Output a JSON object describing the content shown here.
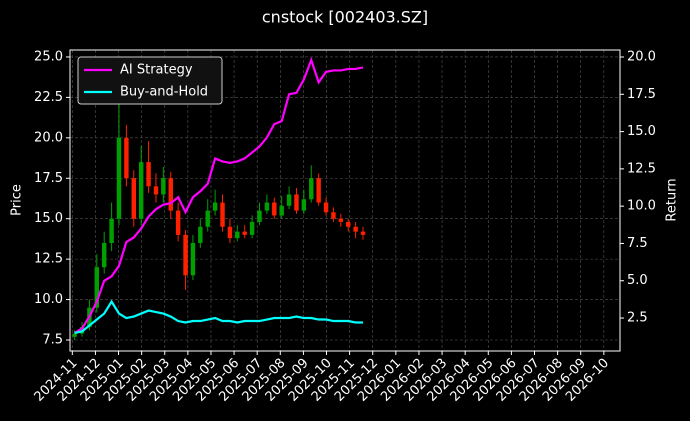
{
  "chart_data": {
    "type": "candlestick",
    "title": "cnstock [002403.SZ]",
    "ylabel": "Price",
    "y2label": "Return",
    "x": [
      0.1,
      0.42,
      0.74,
      1.06,
      1.38,
      1.7,
      2.02,
      2.34,
      2.66,
      2.98,
      3.3,
      3.62,
      3.94,
      4.26,
      4.58,
      4.9,
      5.22,
      5.54,
      5.86,
      6.18,
      6.5,
      6.82,
      7.14,
      7.46,
      7.78,
      8.1,
      8.42,
      8.74,
      9.06,
      9.38,
      9.7,
      10.02,
      10.34,
      10.66,
      10.98,
      11.3,
      11.62,
      11.94,
      12.26,
      12.58
    ],
    "open": [
      7.7,
      7.9,
      8.3,
      9.5,
      12.0,
      13.5,
      15.0,
      20.0,
      17.5,
      15.0,
      18.5,
      17.0,
      16.5,
      17.5,
      15.5,
      14.0,
      11.5,
      13.5,
      14.5,
      15.5,
      16.0,
      14.5,
      13.8,
      14.2,
      14.0,
      14.8,
      15.5,
      16.0,
      15.2,
      15.8,
      16.5,
      15.5,
      16.2,
      17.5,
      16.0,
      15.4,
      15.0,
      14.8,
      14.5,
      14.2
    ],
    "high": [
      8.1,
      8.6,
      10.0,
      12.8,
      14.2,
      16.0,
      22.5,
      20.8,
      18.0,
      19.5,
      19.8,
      17.8,
      18.2,
      17.9,
      16.0,
      14.3,
      14.0,
      15.0,
      16.2,
      16.8,
      16.5,
      15.0,
      14.6,
      14.6,
      15.2,
      16.0,
      16.5,
      16.3,
      16.4,
      17.0,
      16.9,
      16.8,
      18.3,
      17.8,
      16.3,
      15.7,
      15.3,
      15.0,
      14.8,
      14.5
    ],
    "low": [
      7.5,
      7.7,
      8.1,
      9.2,
      11.6,
      13.0,
      14.6,
      17.0,
      14.5,
      14.6,
      16.6,
      16.0,
      16.0,
      15.0,
      13.6,
      10.6,
      11.2,
      13.2,
      14.2,
      15.2,
      14.2,
      13.5,
      13.6,
      13.8,
      13.8,
      14.6,
      15.3,
      15.0,
      15.0,
      15.6,
      15.3,
      15.3,
      16.0,
      15.8,
      15.2,
      14.8,
      14.5,
      14.2,
      13.8,
      13.7
    ],
    "close": [
      7.9,
      8.3,
      9.5,
      12.0,
      13.5,
      15.0,
      20.0,
      17.5,
      15.0,
      18.5,
      17.0,
      16.5,
      17.5,
      15.5,
      14.0,
      11.5,
      13.5,
      14.5,
      15.5,
      16.0,
      14.5,
      13.8,
      14.2,
      14.0,
      14.8,
      15.5,
      16.0,
      15.2,
      15.8,
      16.5,
      15.5,
      16.2,
      17.5,
      16.0,
      15.4,
      15.0,
      14.8,
      14.5,
      14.2,
      14.0
    ],
    "up_color": "#00a000",
    "down_color": "#ff2000",
    "series": [
      {
        "name": "AI Strategy",
        "color": "#ff00ff",
        "axis": "y2",
        "values": [
          1.5,
          1.8,
          2.6,
          3.6,
          5.0,
          5.3,
          6.0,
          7.6,
          7.9,
          8.5,
          9.3,
          9.8,
          10.1,
          10.2,
          10.6,
          9.6,
          10.6,
          11.0,
          11.5,
          13.2,
          13.0,
          12.9,
          13.0,
          13.2,
          13.6,
          14.0,
          14.6,
          15.5,
          15.7,
          17.5,
          17.6,
          18.5,
          19.8,
          18.3,
          19.0,
          19.1,
          19.1,
          19.2,
          19.2,
          19.3
        ]
      },
      {
        "name": "Buy-and-Hold",
        "color": "#00ffff",
        "axis": "y2",
        "values": [
          1.5,
          1.6,
          2.0,
          2.4,
          2.8,
          3.6,
          2.8,
          2.5,
          2.6,
          2.8,
          3.0,
          2.9,
          2.8,
          2.6,
          2.3,
          2.2,
          2.3,
          2.3,
          2.4,
          2.5,
          2.3,
          2.3,
          2.2,
          2.3,
          2.3,
          2.3,
          2.4,
          2.5,
          2.5,
          2.5,
          2.6,
          2.5,
          2.5,
          2.4,
          2.4,
          2.3,
          2.3,
          2.3,
          2.2,
          2.2
        ]
      }
    ],
    "xlim": [
      -0.1,
      23.7
    ],
    "xticks": [
      {
        "value": 0,
        "label": "2024-11"
      },
      {
        "value": 1,
        "label": "2024-12"
      },
      {
        "value": 2,
        "label": "2025-01"
      },
      {
        "value": 3,
        "label": "2025-02"
      },
      {
        "value": 4,
        "label": "2025-03"
      },
      {
        "value": 5,
        "label": "2025-04"
      },
      {
        "value": 6,
        "label": "2025-05"
      },
      {
        "value": 7,
        "label": "2025-06"
      },
      {
        "value": 8,
        "label": "2025-07"
      },
      {
        "value": 9,
        "label": "2025-08"
      },
      {
        "value": 10,
        "label": "2025-09"
      },
      {
        "value": 11,
        "label": "2025-10"
      },
      {
        "value": 12,
        "label": "2025-11"
      },
      {
        "value": 13,
        "label": "2025-12"
      },
      {
        "value": 14,
        "label": "2026-01"
      },
      {
        "value": 15,
        "label": "2026-02"
      },
      {
        "value": 16,
        "label": "2026-03"
      },
      {
        "value": 17,
        "label": "2026-04"
      },
      {
        "value": 18,
        "label": "2026-05"
      },
      {
        "value": 19,
        "label": "2026-06"
      },
      {
        "value": 20,
        "label": "2026-07"
      },
      {
        "value": 21,
        "label": "2026-08"
      },
      {
        "value": 22,
        "label": "2026-09"
      },
      {
        "value": 23,
        "label": "2026-10"
      }
    ],
    "ylim": [
      6.82,
      25.43
    ],
    "yticks": [
      7.5,
      {
        "value": 10,
        "label": "10.0"
      },
      12.5,
      {
        "value": 15,
        "label": "15.0"
      },
      17.5,
      {
        "value": 20,
        "label": "20.0"
      },
      22.5,
      {
        "value": 25,
        "label": "25.0"
      }
    ],
    "y2lim": [
      0.29,
      20.47
    ],
    "y2ticks": [
      2.5,
      {
        "value": 5,
        "label": "5.0"
      },
      7.5,
      {
        "value": 10,
        "label": "10.0"
      },
      12.5,
      {
        "value": 15,
        "label": "15.0"
      },
      17.5,
      {
        "value": 20,
        "label": "20.0"
      }
    ],
    "grid": true,
    "legend": "upper-left"
  }
}
